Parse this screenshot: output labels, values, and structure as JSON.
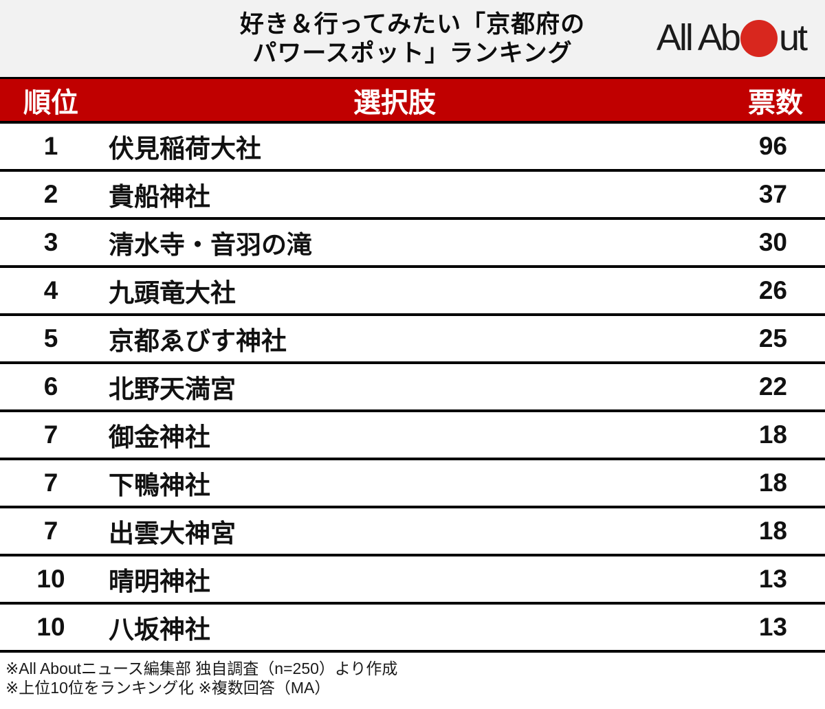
{
  "header": {
    "title_line1": "好き＆行ってみたい「京都府の",
    "title_line2": "パワースポット」ランキング",
    "logo_text_left": "All Ab",
    "logo_text_right": "ut"
  },
  "colors": {
    "table_header_red": "#C00000",
    "logo_circle_red": "#D8271E",
    "top_band_gray": "#F2F2F2"
  },
  "table": {
    "columns": {
      "rank": "順位",
      "choice": "選択肢",
      "votes": "票数"
    },
    "rows": [
      {
        "rank": "1",
        "choice": "伏見稲荷大社",
        "votes": "96"
      },
      {
        "rank": "2",
        "choice": "貴船神社",
        "votes": "37"
      },
      {
        "rank": "3",
        "choice": "清水寺・音羽の滝",
        "votes": "30"
      },
      {
        "rank": "4",
        "choice": "九頭竜大社",
        "votes": "26"
      },
      {
        "rank": "5",
        "choice": "京都ゑびす神社",
        "votes": "25"
      },
      {
        "rank": "6",
        "choice": "北野天満宮",
        "votes": "22"
      },
      {
        "rank": "7",
        "choice": "御金神社",
        "votes": "18"
      },
      {
        "rank": "7",
        "choice": "下鴨神社",
        "votes": "18"
      },
      {
        "rank": "7",
        "choice": "出雲大神宮",
        "votes": "18"
      },
      {
        "rank": "10",
        "choice": "晴明神社",
        "votes": "13"
      },
      {
        "rank": "10",
        "choice": "八坂神社",
        "votes": "13"
      }
    ]
  },
  "footer": {
    "note1": "※All Aboutニュース編集部 独自調査（n=250）より作成",
    "note2": "※上位10位をランキング化 ※複数回答（MA）"
  },
  "chart_data": {
    "type": "table",
    "title": "好き＆行ってみたい「京都府のパワースポット」ランキング",
    "columns": [
      "順位",
      "選択肢",
      "票数"
    ],
    "rows": [
      [
        1,
        "伏見稲荷大社",
        96
      ],
      [
        2,
        "貴船神社",
        37
      ],
      [
        3,
        "清水寺・音羽の滝",
        30
      ],
      [
        4,
        "九頭竜大社",
        26
      ],
      [
        5,
        "京都ゑびす神社",
        25
      ],
      [
        6,
        "北野天満宮",
        22
      ],
      [
        7,
        "御金神社",
        18
      ],
      [
        7,
        "下鴨神社",
        18
      ],
      [
        7,
        "出雲大神宮",
        18
      ],
      [
        10,
        "晴明神社",
        13
      ],
      [
        10,
        "八坂神社",
        13
      ]
    ],
    "notes": [
      "※All Aboutニュース編集部 独自調査（n=250）より作成",
      "※上位10位をランキング化 ※複数回答（MA）"
    ]
  }
}
